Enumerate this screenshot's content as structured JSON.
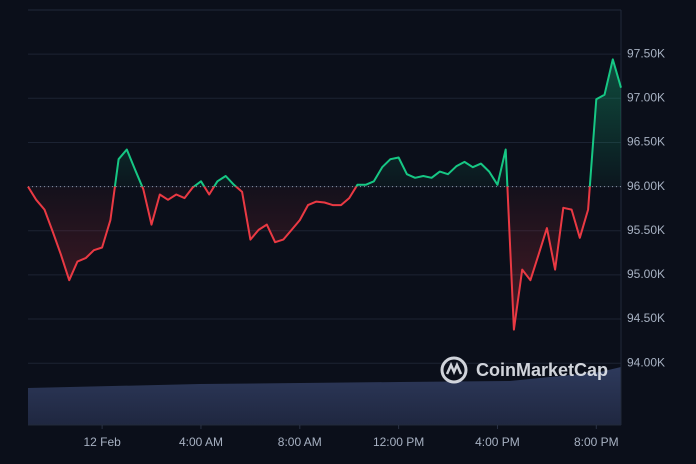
{
  "chart_data": {
    "type": "line",
    "x": [
      -180,
      -160,
      -140,
      -120,
      -100,
      -80,
      -60,
      -40,
      -20,
      0,
      20,
      40,
      60,
      80,
      100,
      120,
      140,
      160,
      180,
      200,
      220,
      240,
      260,
      280,
      300,
      320,
      340,
      360,
      380,
      400,
      420,
      440,
      460,
      480,
      500,
      520,
      540,
      560,
      580,
      600,
      620,
      640,
      660,
      680,
      700,
      720,
      740,
      760,
      780,
      800,
      820,
      840,
      860,
      880,
      900,
      920,
      940,
      960,
      980,
      1000,
      1020,
      1040,
      1060,
      1080,
      1100,
      1120,
      1140,
      1160,
      1180,
      1200,
      1220,
      1240,
      1260
    ],
    "values": [
      96000,
      95850,
      95740,
      95490,
      95230,
      94940,
      95150,
      95190,
      95280,
      95310,
      95620,
      96310,
      96420,
      96190,
      95970,
      95570,
      95910,
      95850,
      95910,
      95870,
      95990,
      96060,
      95910,
      96060,
      96120,
      96020,
      95940,
      95400,
      95510,
      95570,
      95370,
      95400,
      95510,
      95620,
      95790,
      95830,
      95820,
      95790,
      95790,
      95870,
      96020,
      96020,
      96060,
      96220,
      96310,
      96330,
      96140,
      96100,
      96120,
      96100,
      96170,
      96140,
      96230,
      96280,
      96220,
      96260,
      96170,
      96020,
      96420,
      94380,
      95060,
      94940,
      95230,
      95530,
      95060,
      95760,
      95740,
      95420,
      95740,
      96990,
      97040,
      97440,
      97120
    ],
    "baseline": 96000,
    "up_color": "#16c784",
    "down_color": "#ea3943",
    "xlim": [
      -180,
      1260
    ],
    "xticks": [
      {
        "value": 0,
        "label": "12 Feb"
      },
      {
        "value": 240,
        "label": "4:00 AM"
      },
      {
        "value": 480,
        "label": "8:00 AM"
      },
      {
        "value": 720,
        "label": "12:00 PM"
      },
      {
        "value": 960,
        "label": "4:00 PM"
      },
      {
        "value": 1200,
        "label": "8:00 PM"
      }
    ],
    "ylim": [
      93300,
      98000
    ],
    "yticks": [
      {
        "value": 94000,
        "label": "94.00K"
      },
      {
        "value": 94500,
        "label": "94.50K"
      },
      {
        "value": 95000,
        "label": "95.00K"
      },
      {
        "value": 95500,
        "label": "95.50K"
      },
      {
        "value": 96000,
        "label": "96.00K"
      },
      {
        "value": 96500,
        "label": "96.50K"
      },
      {
        "value": 97000,
        "label": "97.00K"
      },
      {
        "value": 97500,
        "label": "97.50K"
      }
    ],
    "grid": true,
    "watermark": "CoinMarketCap"
  }
}
